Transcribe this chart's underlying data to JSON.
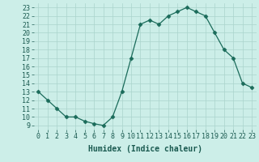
{
  "x": [
    0,
    1,
    2,
    3,
    4,
    5,
    6,
    7,
    8,
    9,
    10,
    11,
    12,
    13,
    14,
    15,
    16,
    17,
    18,
    19,
    20,
    21,
    22,
    23
  ],
  "y": [
    13,
    12,
    11,
    10,
    10,
    9.5,
    9.2,
    9,
    10,
    13,
    17,
    21,
    21.5,
    21,
    22,
    22.5,
    23,
    22.5,
    22,
    20,
    18,
    17,
    14,
    13.5
  ],
  "line_color": "#1a6b5a",
  "marker": "D",
  "marker_size": 2.5,
  "bg_color": "#cceee8",
  "grid_color": "#aad4cc",
  "xlabel": "Humidex (Indice chaleur)",
  "xlim": [
    -0.5,
    23.5
  ],
  "ylim": [
    8.5,
    23.5
  ],
  "yticks": [
    9,
    10,
    11,
    12,
    13,
    14,
    15,
    16,
    17,
    18,
    19,
    20,
    21,
    22,
    23
  ],
  "xticks": [
    0,
    1,
    2,
    3,
    4,
    5,
    6,
    7,
    8,
    9,
    10,
    11,
    12,
    13,
    14,
    15,
    16,
    17,
    18,
    19,
    20,
    21,
    22,
    23
  ],
  "xlabel_fontsize": 7,
  "tick_fontsize": 6,
  "label_color": "#1a5a50"
}
